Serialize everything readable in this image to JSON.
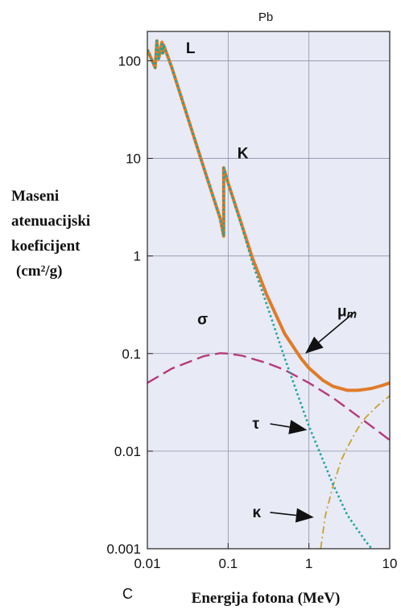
{
  "chart_data": {
    "type": "line",
    "title": "Pb",
    "xlabel": "Energija fotona (MeV)",
    "ylabel_lines": [
      "Maseni",
      "atenuacijski",
      "koeficijent",
      "(cm²/g)"
    ],
    "panel_label": "C",
    "x_scale": "log",
    "y_scale": "log",
    "xlim": [
      0.01,
      10
    ],
    "ylim": [
      0.001,
      200
    ],
    "x_ticks": [
      "0.01",
      "0.1",
      "1",
      "10"
    ],
    "y_ticks": [
      "0.001",
      "0.01",
      "0.1",
      "1",
      "10",
      "100"
    ],
    "grid": true,
    "background": "#e8eaf6",
    "annotations": [
      {
        "text": "L",
        "x": 0.03,
        "y": 120
      },
      {
        "text": "K",
        "x": 0.13,
        "y": 10
      }
    ],
    "series": [
      {
        "name": "μm",
        "color": "#e07b28",
        "style": "solid",
        "x": [
          0.01,
          0.0125,
          0.0131,
          0.0138,
          0.0152,
          0.0155,
          0.0159,
          0.02,
          0.03,
          0.05,
          0.08,
          0.088,
          0.0881,
          0.1,
          0.15,
          0.2,
          0.3,
          0.5,
          0.8,
          1,
          1.5,
          2,
          3,
          4,
          5,
          6,
          8,
          10
        ],
        "y": [
          130,
          85,
          160,
          105,
          155,
          120,
          145,
          86,
          30,
          8,
          2.4,
          1.6,
          8.0,
          5.6,
          2.0,
          0.95,
          0.4,
          0.16,
          0.089,
          0.071,
          0.053,
          0.046,
          0.042,
          0.042,
          0.043,
          0.044,
          0.047,
          0.05
        ]
      },
      {
        "name": "σ",
        "color": "#b53a7a",
        "style": "dashed",
        "x": [
          0.01,
          0.02,
          0.05,
          0.08,
          0.1,
          0.15,
          0.3,
          0.5,
          1,
          2,
          5,
          10
        ],
        "y": [
          0.05,
          0.07,
          0.094,
          0.101,
          0.1,
          0.095,
          0.08,
          0.068,
          0.05,
          0.035,
          0.02,
          0.013
        ]
      },
      {
        "name": "τ",
        "color": "#1aa59f",
        "style": "dotted",
        "x": [
          0.01,
          0.0125,
          0.0131,
          0.0138,
          0.0152,
          0.0155,
          0.0159,
          0.02,
          0.03,
          0.05,
          0.08,
          0.088,
          0.0881,
          0.1,
          0.15,
          0.2,
          0.3,
          0.5,
          1,
          2,
          3,
          5,
          6
        ],
        "y": [
          130,
          85,
          160,
          105,
          155,
          120,
          145,
          86,
          30,
          8,
          2.4,
          1.6,
          8.0,
          5.5,
          1.9,
          0.85,
          0.32,
          0.09,
          0.018,
          0.0045,
          0.0022,
          0.0012,
          0.001
        ]
      },
      {
        "name": "κ",
        "color": "#c9a227",
        "style": "dashdot",
        "x": [
          1.4,
          1.6,
          2,
          2.5,
          3,
          4,
          5,
          7,
          10
        ],
        "y": [
          0.001,
          0.0022,
          0.0045,
          0.008,
          0.011,
          0.017,
          0.022,
          0.029,
          0.037
        ]
      }
    ],
    "series_labels": [
      {
        "text": "σ",
        "x": 0.05,
        "y": 0.2
      },
      {
        "text": "μ",
        "sub": "m",
        "x": 2.7,
        "y": 0.24,
        "arrow_to": [
          0.9,
          0.1
        ]
      },
      {
        "text": "τ",
        "x": 0.24,
        "y": 0.017,
        "arrow_to": [
          0.95,
          0.0165
        ]
      },
      {
        "text": "κ",
        "x": 0.24,
        "y": 0.0021,
        "arrow_to": [
          1.15,
          0.0021
        ]
      }
    ]
  }
}
